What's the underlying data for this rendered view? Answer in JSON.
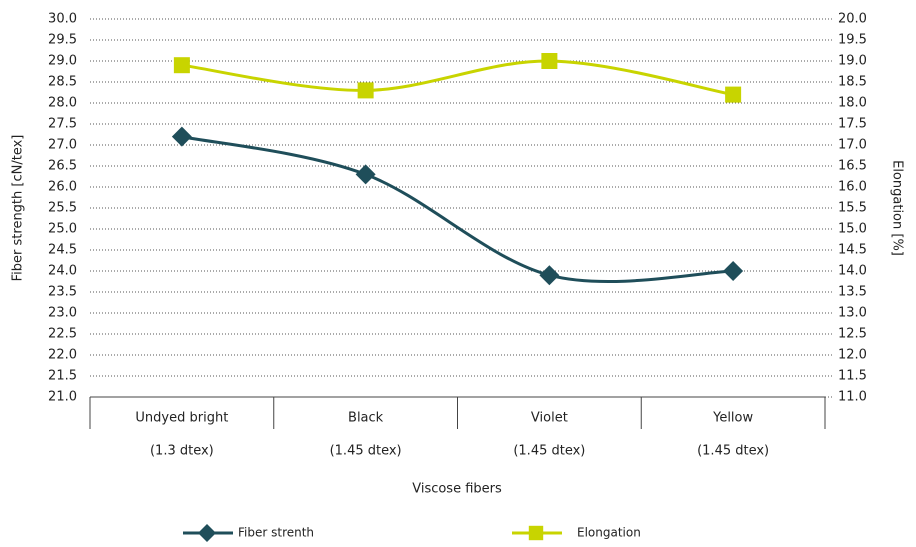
{
  "chart_data": {
    "type": "line",
    "x_label": "Viscose fibers",
    "y_label": "Fiber strength [cN/tex]",
    "y2_label": "Elongation [%]",
    "categories": [
      [
        "Undyed bright",
        "(1.3 dtex)"
      ],
      [
        "Black",
        "(1.45 dtex)"
      ],
      [
        "Violet",
        "(1.45 dtex)"
      ],
      [
        "Yellow",
        "(1.45 dtex)"
      ]
    ],
    "series": [
      {
        "name": "Fiber strenth",
        "color": "#1f4e5a",
        "marker": "diamond",
        "values": [
          27.2,
          26.3,
          23.9,
          24.0
        ]
      },
      {
        "name": "Elongation",
        "color": "#c8d400",
        "marker": "square",
        "axis": "y2",
        "values": [
          18.9,
          18.3,
          19.0,
          18.2
        ]
      }
    ],
    "ylim": [
      21,
      30
    ],
    "yticks": [
      {
        "value": 21,
        "label": "21.0"
      },
      {
        "value": 21.5,
        "label": "21.5"
      },
      {
        "value": 22,
        "label": "22.0"
      },
      {
        "value": 22.5,
        "label": "22.5"
      },
      {
        "value": 23,
        "label": "23.0"
      },
      {
        "value": 23.5,
        "label": "23.5"
      },
      {
        "value": 24,
        "label": "24.0"
      },
      {
        "value": 24.5,
        "label": "24.5"
      },
      {
        "value": 25,
        "label": "25.0"
      },
      {
        "value": 25.5,
        "label": "25.5"
      },
      {
        "value": 26,
        "label": "26.0"
      },
      {
        "value": 26.5,
        "label": "26.5"
      },
      {
        "value": 27,
        "label": "27.0"
      },
      {
        "value": 27.5,
        "label": "27.5"
      },
      {
        "value": 28,
        "label": "28.0"
      },
      {
        "value": 28.5,
        "label": "28.5"
      },
      {
        "value": 29,
        "label": "29.0"
      },
      {
        "value": 29.5,
        "label": "29.5"
      },
      {
        "value": 30,
        "label": "30.0"
      }
    ],
    "y2lim": [
      11,
      20
    ],
    "y2ticks": [
      {
        "value": 11,
        "label": "11.0"
      },
      {
        "value": 11.5,
        "label": "11.5"
      },
      {
        "value": 12,
        "label": "12.0"
      },
      {
        "value": 12.5,
        "label": "12.5"
      },
      {
        "value": 13,
        "label": "13.0"
      },
      {
        "value": 13.5,
        "label": "13.5"
      },
      {
        "value": 14,
        "label": "14.0"
      },
      {
        "value": 14.5,
        "label": "14.5"
      },
      {
        "value": 15,
        "label": "15.0"
      },
      {
        "value": 15.5,
        "label": "15.5"
      },
      {
        "value": 16,
        "label": "16.0"
      },
      {
        "value": 16.5,
        "label": "16.5"
      },
      {
        "value": 17,
        "label": "17.0"
      },
      {
        "value": 17.5,
        "label": "17.5"
      },
      {
        "value": 18,
        "label": "18.0"
      },
      {
        "value": 18.5,
        "label": "18.5"
      },
      {
        "value": 19,
        "label": "19.0"
      },
      {
        "value": 19.5,
        "label": "19.5"
      },
      {
        "value": 20,
        "label": "20.0"
      }
    ],
    "grid": true,
    "smooth": true,
    "legend": "bottom"
  }
}
